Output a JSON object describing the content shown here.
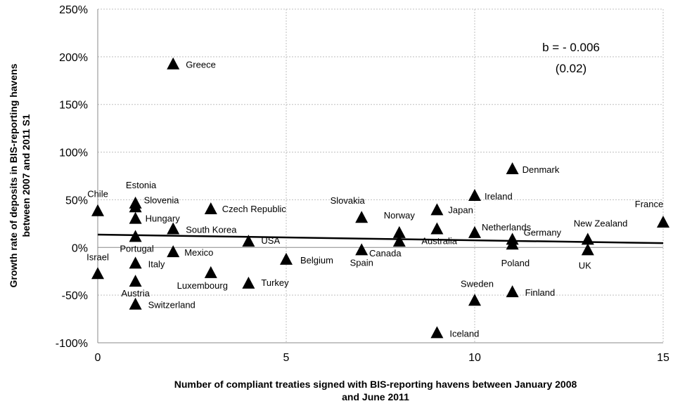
{
  "chart_data": {
    "type": "scatter",
    "xlabel_lines": [
      "Number of compliant treaties signed with BIS-reporting havens between January 2008",
      "and June 2011"
    ],
    "ylabel_lines": [
      "Growth rate of deposits in BIS-reporting havens",
      "between 2007 and 2011 S1"
    ],
    "xlim": [
      0,
      15
    ],
    "ylim": [
      -100,
      250
    ],
    "x_ticks": [
      0,
      5,
      10,
      15
    ],
    "y_ticks": [
      -100,
      -50,
      0,
      50,
      100,
      150,
      200,
      250
    ],
    "y_tick_labels": [
      "-100%",
      "-50%",
      "0%",
      "50%",
      "100%",
      "150%",
      "200%",
      "250%"
    ],
    "grid": "horizontal and vertical dotted",
    "marker": "triangle",
    "points": [
      {
        "label": "Chile",
        "x": 0,
        "y": 38
      },
      {
        "label": "Israel",
        "x": 0,
        "y": -28
      },
      {
        "label": "Estonia",
        "x": 1,
        "y": 46
      },
      {
        "label": "Slovenia",
        "x": 1,
        "y": 42
      },
      {
        "label": "Hungary",
        "x": 1,
        "y": 30
      },
      {
        "label": "Portugal",
        "x": 1,
        "y": 11
      },
      {
        "label": "Italy",
        "x": 1,
        "y": -17
      },
      {
        "label": "Austria",
        "x": 1,
        "y": -36
      },
      {
        "label": "Switzerland",
        "x": 1,
        "y": -60
      },
      {
        "label": "Greece",
        "x": 2,
        "y": 192
      },
      {
        "label": "South Korea",
        "x": 2,
        "y": 19
      },
      {
        "label": "Mexico",
        "x": 2,
        "y": -5
      },
      {
        "label": "Czech Republic",
        "x": 3,
        "y": 40
      },
      {
        "label": "Luxembourg",
        "x": 3,
        "y": -27
      },
      {
        "label": "USA",
        "x": 4,
        "y": 6
      },
      {
        "label": "Turkey",
        "x": 4,
        "y": -38
      },
      {
        "label": "Belgium",
        "x": 5,
        "y": -13
      },
      {
        "label": "Slovakia",
        "x": 7,
        "y": 31
      },
      {
        "label": "Spain",
        "x": 7,
        "y": -3
      },
      {
        "label": "Norway",
        "x": 8,
        "y": 15
      },
      {
        "label": "Canada",
        "x": 8,
        "y": 6
      },
      {
        "label": "Japan",
        "x": 9,
        "y": 39
      },
      {
        "label": "Australia",
        "x": 9,
        "y": 19
      },
      {
        "label": "Iceland",
        "x": 9,
        "y": -90
      },
      {
        "label": "Ireland",
        "x": 10,
        "y": 54
      },
      {
        "label": "Netherlands",
        "x": 10,
        "y": 15
      },
      {
        "label": "Sweden",
        "x": 10,
        "y": -56
      },
      {
        "label": "Denmark",
        "x": 11,
        "y": 82
      },
      {
        "label": "Germany",
        "x": 11,
        "y": 8
      },
      {
        "label": "Poland",
        "x": 11,
        "y": 3
      },
      {
        "label": "Finland",
        "x": 11,
        "y": -47
      },
      {
        "label": "New Zealand",
        "x": 13,
        "y": 8
      },
      {
        "label": "UK",
        "x": 13,
        "y": -3
      },
      {
        "label": "France",
        "x": 15,
        "y": 26
      }
    ],
    "trendline": {
      "x": [
        0,
        15
      ],
      "y": [
        13.5,
        4.5
      ]
    },
    "annotation_lines": [
      "b = - 0.006",
      "(0.02)"
    ]
  }
}
